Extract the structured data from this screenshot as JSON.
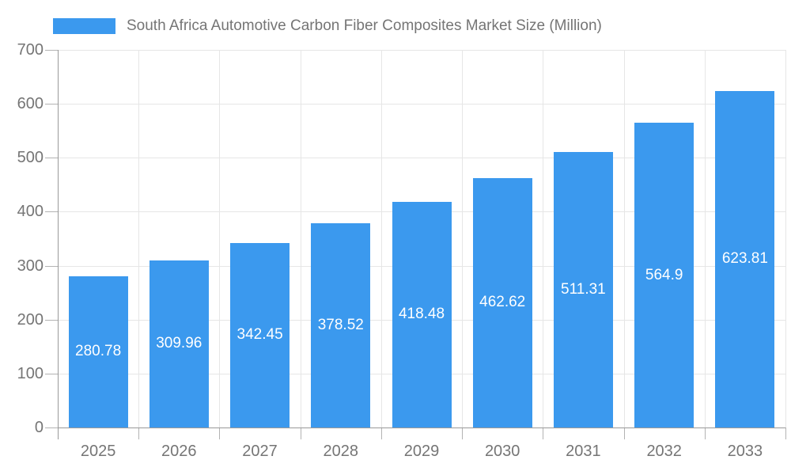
{
  "colors": {
    "bar": "#3b99ee",
    "axis": "#999999",
    "tick": "#b3b3b3",
    "grid": "#e6e6e6",
    "text_muted": "#757575",
    "value_label": "#ffffff",
    "background": "#ffffff"
  },
  "legend": {
    "swatch_color": "#3b99ee"
  },
  "chart_data": {
    "type": "bar",
    "title": "South Africa Automotive Carbon Fiber Composites Market Size (Million)",
    "categories": [
      "2025",
      "2026",
      "2027",
      "2028",
      "2029",
      "2030",
      "2031",
      "2032",
      "2033"
    ],
    "values": [
      280.78,
      309.96,
      342.45,
      378.52,
      418.48,
      462.62,
      511.31,
      564.9,
      623.81
    ],
    "xlabel": "",
    "ylabel": "",
    "ylim": [
      0,
      700
    ],
    "ytick_step": 100,
    "grid": true,
    "legend_position": "top",
    "value_label_position": "inside-middle"
  }
}
